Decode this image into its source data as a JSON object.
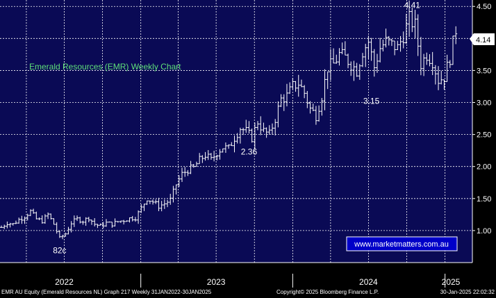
{
  "colors": {
    "plot_bg": "#0a0a55",
    "grid": "#ffffff",
    "bars": "#ffffff",
    "title": "#5fe07a",
    "axis_text": "#ffffff",
    "panel_bg": "#000000",
    "last_price_box": "#ffffff"
  },
  "chart_data": {
    "type": "ohlc",
    "title": "Emerald Resources (EMR) Weekly Chart",
    "watermark": "www.marketmatters.com.au",
    "x_range": [
      "2022-01-31",
      "2025-01-30"
    ],
    "ylim": [
      0.5,
      4.6
    ],
    "y_ticks": [
      "1.00",
      "1.50",
      "2.00",
      "2.50",
      "3.00",
      "3.50",
      "4.00",
      "4.50"
    ],
    "x_ticks": [
      {
        "label": "2022",
        "date": "2022-07-01"
      },
      {
        "label": "2023",
        "date": "2023-07-01"
      },
      {
        "label": "2024",
        "date": "2024-07-01"
      },
      {
        "label": "2025",
        "date": "2025-01-15"
      }
    ],
    "grid": true,
    "last_price": "4.14",
    "annotations": [
      {
        "text": "82c",
        "date": "2022-06-20",
        "value": 0.82
      },
      {
        "text": "2.36",
        "date": "2023-09-18",
        "value": 2.36
      },
      {
        "text": "3.15",
        "date": "2024-07-08",
        "value": 3.15
      },
      {
        "text": "4.41",
        "date": "2024-10-14",
        "value": 4.41
      }
    ],
    "close_path": [
      [
        "2022-01-31",
        1.05
      ],
      [
        "2022-02-14",
        1.12
      ],
      [
        "2022-02-28",
        1.1
      ],
      [
        "2022-03-14",
        1.17
      ],
      [
        "2022-03-28",
        1.22
      ],
      [
        "2022-04-11",
        1.3
      ],
      [
        "2022-04-25",
        1.18
      ],
      [
        "2022-05-09",
        1.15
      ],
      [
        "2022-05-23",
        1.25
      ],
      [
        "2022-06-06",
        1.1
      ],
      [
        "2022-06-20",
        0.88
      ],
      [
        "2022-07-04",
        0.95
      ],
      [
        "2022-07-18",
        1.12
      ],
      [
        "2022-08-01",
        1.18
      ],
      [
        "2022-08-15",
        1.15
      ],
      [
        "2022-08-29",
        1.2
      ],
      [
        "2022-09-12",
        1.1
      ],
      [
        "2022-09-26",
        1.07
      ],
      [
        "2022-10-10",
        1.12
      ],
      [
        "2022-10-24",
        1.1
      ],
      [
        "2022-11-07",
        1.14
      ],
      [
        "2022-11-21",
        1.16
      ],
      [
        "2022-12-05",
        1.19
      ],
      [
        "2022-12-19",
        1.2
      ],
      [
        "2023-01-02",
        1.35
      ],
      [
        "2023-01-16",
        1.5
      ],
      [
        "2023-01-30",
        1.45
      ],
      [
        "2023-02-13",
        1.38
      ],
      [
        "2023-02-27",
        1.42
      ],
      [
        "2023-03-13",
        1.48
      ],
      [
        "2023-03-27",
        1.72
      ],
      [
        "2023-04-10",
        1.88
      ],
      [
        "2023-04-24",
        1.95
      ],
      [
        "2023-05-08",
        1.98
      ],
      [
        "2023-05-22",
        2.1
      ],
      [
        "2023-06-05",
        2.18
      ],
      [
        "2023-06-19",
        2.1
      ],
      [
        "2023-07-03",
        2.22
      ],
      [
        "2023-07-17",
        2.3
      ],
      [
        "2023-07-31",
        2.28
      ],
      [
        "2023-08-14",
        2.45
      ],
      [
        "2023-08-28",
        2.6
      ],
      [
        "2023-09-11",
        2.55
      ],
      [
        "2023-09-25",
        2.45
      ],
      [
        "2023-10-09",
        2.7
      ],
      [
        "2023-10-23",
        2.55
      ],
      [
        "2023-11-06",
        2.5
      ],
      [
        "2023-11-20",
        2.75
      ],
      [
        "2023-12-04",
        3.05
      ],
      [
        "2023-12-18",
        3.1
      ],
      [
        "2024-01-01",
        3.25
      ],
      [
        "2024-01-15",
        3.3
      ],
      [
        "2024-01-29",
        3.15
      ],
      [
        "2024-02-12",
        2.9
      ],
      [
        "2024-02-26",
        2.8
      ],
      [
        "2024-03-11",
        3.1
      ],
      [
        "2024-03-25",
        3.55
      ],
      [
        "2024-04-08",
        3.6
      ],
      [
        "2024-04-22",
        3.75
      ],
      [
        "2024-05-06",
        3.7
      ],
      [
        "2024-05-20",
        3.6
      ],
      [
        "2024-06-03",
        3.5
      ],
      [
        "2024-06-17",
        3.8
      ],
      [
        "2024-07-01",
        3.95
      ],
      [
        "2024-07-15",
        3.55
      ],
      [
        "2024-07-29",
        3.85
      ],
      [
        "2024-08-12",
        3.95
      ],
      [
        "2024-08-26",
        3.9
      ],
      [
        "2024-09-09",
        3.85
      ],
      [
        "2024-09-23",
        4.05
      ],
      [
        "2024-10-07",
        4.3
      ],
      [
        "2024-10-21",
        4.2
      ],
      [
        "2024-11-04",
        3.6
      ],
      [
        "2024-11-18",
        3.75
      ],
      [
        "2024-12-02",
        3.65
      ],
      [
        "2024-12-16",
        3.35
      ],
      [
        "2024-12-30",
        3.4
      ],
      [
        "2025-01-13",
        3.7
      ],
      [
        "2025-01-27",
        4.14
      ]
    ]
  },
  "footer": {
    "left": "EMR AU Equity (Emerald Resources NL) Graph 217  Weekly 31JAN2022-30JAN2025",
    "copyright": "Copyright© 2025 Bloomberg Finance L.P.",
    "timestamp": "30-Jan-2025 22:02:32"
  }
}
